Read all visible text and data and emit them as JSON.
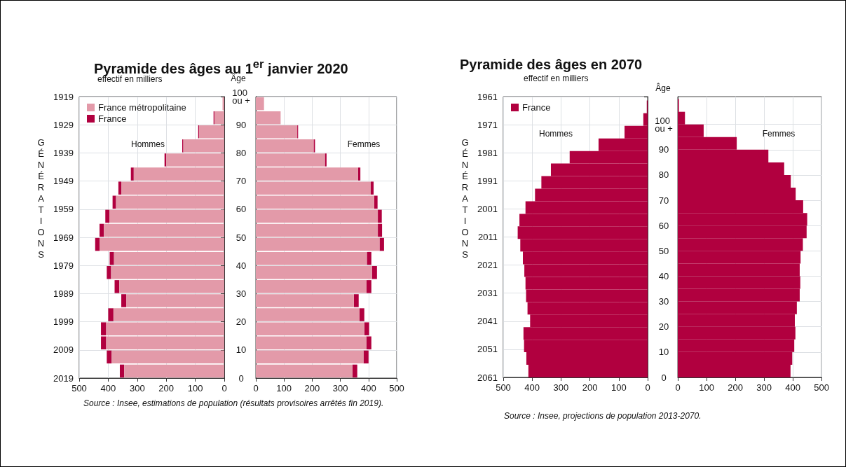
{
  "chart_data": [
    {
      "type": "bar",
      "orientation": "horizontal",
      "stacked": true,
      "title": "Pyramide des âges au 1$^{er}$ janvier 2020",
      "ylabel": "GÉNÉRATIONS",
      "annotations": [
        "effectif en milliers",
        "Hommes",
        "Source : Insee, estimations de population (résultats provisoires arrêtés fin 2019)."
      ],
      "x": [
        2016.5,
        2011.5,
        2006.5,
        2001.5,
        1996.5,
        1991.5,
        1986.5,
        1981.5,
        1976.5,
        1971.5,
        1966.5,
        1961.5,
        1956.5,
        1951.5,
        1946.5,
        1941.5,
        1936.5,
        1931.5,
        1926.5,
        1921.5
      ],
      "series": [
        {
          "name": "France métropolitaine",
          "color": "#e39aa9",
          "values": [
            345,
            388,
            407,
            407,
            382,
            338,
            362,
            390,
            380,
            430,
            415,
            396,
            373,
            355,
            312,
            200,
            141,
            87,
            34,
            6
          ]
        },
        {
          "name": "France",
          "color": "#b1003f",
          "values": [
            15,
            17,
            18,
            18,
            18,
            17,
            16,
            15,
            15,
            15,
            15,
            14,
            12,
            10,
            10,
            6,
            4,
            3,
            3,
            null
          ]
        }
      ],
      "xlim": [
        500,
        0
      ],
      "xticks": [
        500,
        400,
        300,
        200,
        100,
        0
      ],
      "ylim": [
        2019,
        1919
      ],
      "yticks": [
        2019,
        2009,
        1999,
        1989,
        1979,
        1969,
        1959,
        1949,
        1939,
        1929,
        1919
      ],
      "grid": true,
      "legend": "top left"
    },
    {
      "type": "bar",
      "orientation": "horizontal",
      "stacked": true,
      "ylabel": "Âge",
      "annotations": [
        "Femmes"
      ],
      "x": [
        2.5,
        7.5,
        12.5,
        17.5,
        22.5,
        27.5,
        32.5,
        37.5,
        42.5,
        47.5,
        52.5,
        57.5,
        62.5,
        67.5,
        72.5,
        77.5,
        82.5,
        87.5,
        92.5,
        97.5
      ],
      "series": [
        {
          "color": "#e39aa9",
          "values": [
            343,
            382,
            392,
            385,
            368,
            348,
            393,
            412,
            394,
            439,
            433,
            433,
            420,
            408,
            363,
            245,
            205,
            147,
            88,
            29
          ]
        },
        {
          "color": "#b1003f",
          "values": [
            17,
            18,
            18,
            17,
            17,
            17,
            17,
            18,
            16,
            16,
            15,
            14,
            12,
            10,
            8,
            6,
            5,
            3,
            null,
            null
          ]
        }
      ],
      "xlim": [
        0,
        500
      ],
      "xticks": [
        0,
        100,
        200,
        300,
        400,
        500
      ],
      "ylim": [
        0,
        100
      ],
      "yticks": [
        0,
        10,
        20,
        30,
        40,
        50,
        60,
        70,
        80,
        90,
        {
          "value": 100,
          "label": "100 ou +"
        }
      ],
      "grid": true
    },
    {
      "type": "histogram",
      "orientation": "horizontal",
      "title": "Pyramide des âges en 2070",
      "ylabel": "GÉNÉRATIONS",
      "annotations": [
        "effectif en milliers",
        "Hommes",
        "Source : Insee, projections de population 2013-2070."
      ],
      "bins": [
        2061,
        2056.5,
        2052,
        2047.6,
        2043.1,
        2038.6,
        2034.2,
        2029.7,
        2025.2,
        2020.7,
        2016.2,
        2011.7,
        2007.2,
        2002.8,
        1998.3,
        1993.8,
        1989.3,
        1984.8,
        1980.4,
        1975.9,
        1971.4,
        1966.9,
        1962.4
      ],
      "series": [
        {
          "name": "France",
          "color": "#b1003f",
          "values": [
            413,
            420,
            428,
            430,
            407,
            416,
            421,
            423,
            427,
            432,
            441,
            450,
            444,
            423,
            390,
            368,
            335,
            270,
            170,
            80,
            15,
            3
          ]
        }
      ],
      "xlim": [
        500,
        0
      ],
      "xticks": [
        500,
        400,
        300,
        200,
        100,
        0
      ],
      "ylim": [
        2061,
        1961
      ],
      "yticks": [
        2061,
        2051,
        2041,
        2031,
        2021,
        2011,
        2001,
        1991,
        1981,
        1971,
        1961
      ],
      "grid": true,
      "legend": "top left"
    },
    {
      "type": "histogram",
      "orientation": "horizontal",
      "ylabel": "Âge",
      "annotations": [
        "Femmes"
      ],
      "bins": [
        0,
        5,
        10,
        15,
        20,
        25,
        30,
        35,
        40,
        45,
        50,
        55,
        60,
        65,
        70,
        75,
        80,
        85,
        90,
        95,
        100,
        105,
        110
      ],
      "series": [
        {
          "color": "#b1003f",
          "values": [
            392,
            398,
            405,
            409,
            407,
            414,
            424,
            426,
            424,
            427,
            435,
            448,
            450,
            436,
            410,
            393,
            370,
            315,
            205,
            90,
            25,
            4
          ]
        }
      ],
      "xlim": [
        0,
        500
      ],
      "xticks": [
        0,
        100,
        200,
        300,
        400,
        500
      ],
      "ylim": [
        0,
        111
      ],
      "yticks": [
        0,
        10,
        20,
        30,
        40,
        50,
        60,
        70,
        80,
        90,
        {
          "value": 100,
          "label": "100 ou +"
        }
      ],
      "grid": true
    }
  ]
}
